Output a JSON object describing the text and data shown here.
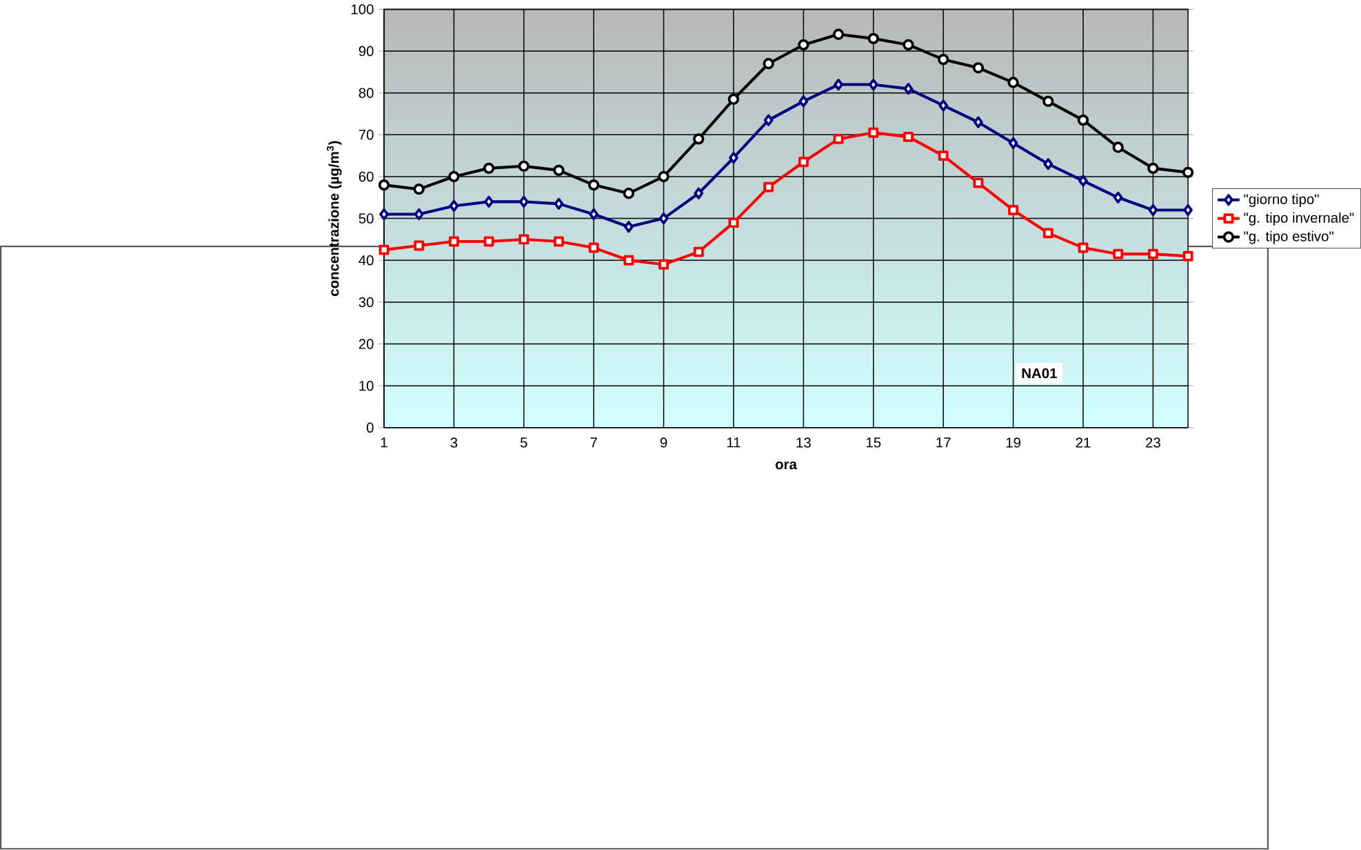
{
  "chart_data": {
    "type": "line",
    "xlabel": "ora",
    "ylabel": "concentrazione (µg/m$^{3}$)",
    "x": [
      1,
      2,
      3,
      4,
      5,
      6,
      7,
      8,
      9,
      10,
      11,
      12,
      13,
      14,
      15,
      16,
      17,
      18,
      19,
      20,
      21,
      22,
      23,
      24
    ],
    "series": [
      {
        "name": "\"giorno tipo\"",
        "color": "#000080",
        "marker": "diamond",
        "values": [
          51,
          51,
          53,
          54,
          54,
          53.5,
          51,
          48,
          50,
          56,
          64.5,
          73.5,
          78,
          82,
          82,
          81,
          77,
          73,
          68,
          63,
          59,
          55,
          52,
          52
        ]
      },
      {
        "name": "\"g. tipo invernale\"",
        "color": "#ff0000",
        "marker": "square",
        "values": [
          42.5,
          43.5,
          44.5,
          44.5,
          45,
          44.5,
          43,
          40,
          39,
          42,
          49,
          57.5,
          63.5,
          69,
          70.5,
          69.5,
          65,
          58.5,
          52,
          46.5,
          43,
          41.5,
          41.5,
          41
        ]
      },
      {
        "name": "\"g. tipo estivo\"",
        "color": "#000000",
        "marker": "circle",
        "values": [
          58,
          57,
          60,
          62,
          62.5,
          61.5,
          58,
          56,
          60,
          69,
          78.5,
          87,
          91.5,
          94,
          93,
          91.5,
          88,
          86,
          82.5,
          78,
          73.5,
          67,
          62,
          61
        ]
      }
    ],
    "xlim": [
      1,
      24
    ],
    "xticks": [
      1,
      3,
      5,
      7,
      9,
      11,
      13,
      15,
      17,
      19,
      21,
      23
    ],
    "ylim": [
      0,
      100
    ],
    "yticks": [
      0,
      10,
      20,
      30,
      40,
      50,
      60,
      70,
      80,
      90,
      100
    ],
    "grid": true,
    "legend": "right",
    "line_style": "solid",
    "annotations": [
      "NA01"
    ]
  }
}
